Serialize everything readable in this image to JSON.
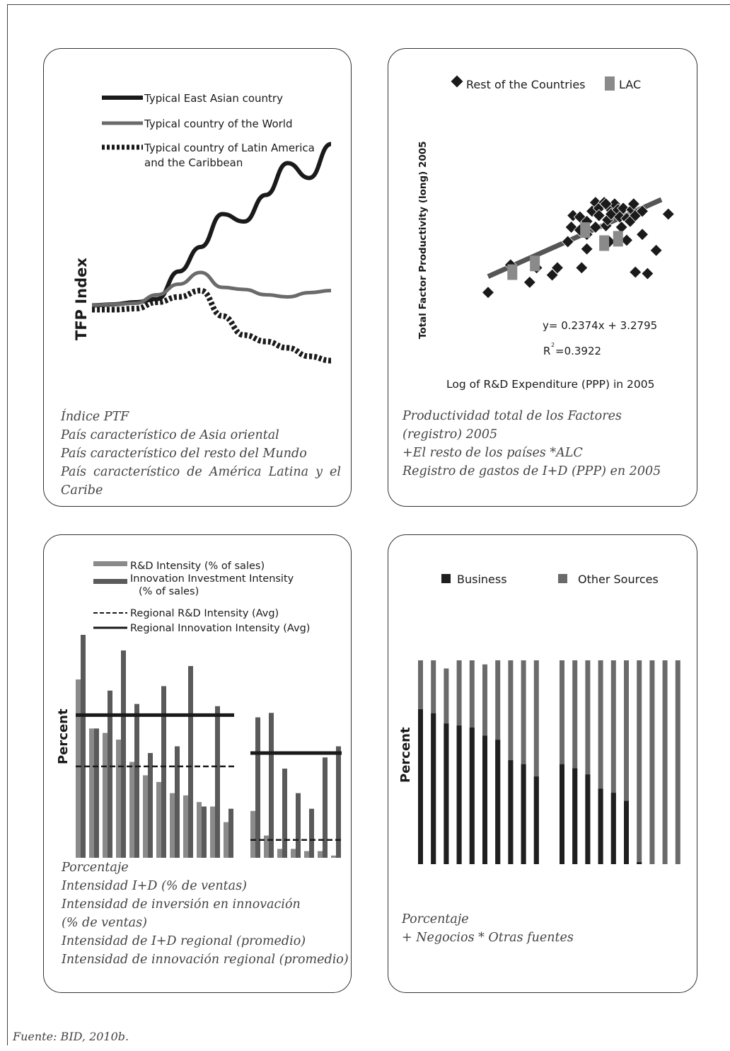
{
  "source": "Fuente: BID, 2010b.",
  "chart_data": [
    {
      "type": "line",
      "ylabel": "TFP Index",
      "legend": [
        {
          "name": "Typical East Asian country",
          "color": "#1a1a1a",
          "style": "solid-thick"
        },
        {
          "name": "Typical country of the World",
          "color": "#6a6a6a",
          "style": "solid"
        },
        {
          "name": "Typical country of Latin America",
          "name2": "and the Caribbean",
          "color": "#1a1a1a",
          "style": "dashed-thick"
        }
      ],
      "series": [
        {
          "name": "Typical East Asian country",
          "values": [
            1.0,
            1.01,
            1.03,
            1.06,
            1.32,
            1.55,
            1.86,
            1.79,
            2.04,
            2.34,
            2.2,
            2.52
          ]
        },
        {
          "name": "Typical country of the World",
          "values": [
            1.0,
            1.01,
            1.02,
            1.1,
            1.2,
            1.31,
            1.17,
            1.15,
            1.1,
            1.08,
            1.12,
            1.14
          ]
        },
        {
          "name": "Typical country of Latin America and the Caribbean",
          "values": [
            0.96,
            0.96,
            0.97,
            1.03,
            1.08,
            1.14,
            0.9,
            0.72,
            0.66,
            0.6,
            0.52,
            0.48
          ]
        }
      ],
      "caption": [
        "Índice PTF",
        "País característico de Asia oriental",
        "País característico del resto del Mundo",
        "País característico de América Latina y el Caribe"
      ]
    },
    {
      "type": "scatter",
      "xlabel": "Log of R&D Expenditure (PPP) in 2005",
      "ylabel": "Total Factor Productivity (long) 2005",
      "legend": [
        {
          "name": "Rest of the Countries",
          "marker": "diamond",
          "color": "#1a1a1a"
        },
        {
          "name": "LAC",
          "marker": "square",
          "color": "#8a8a8a"
        }
      ],
      "equation": "y= 0.2374x + 3.2795",
      "r2": "=0.3922",
      "trend": {
        "x0": 0.0,
        "y0": 0.7,
        "x1": 10.0,
        "y1": 6.0
      },
      "series": [
        {
          "name": "Rest of the Countries",
          "points": [
            [
              0,
              -0.4
            ],
            [
              1.3,
              1.5
            ],
            [
              2.4,
              0.3
            ],
            [
              2.8,
              1.3
            ],
            [
              3.7,
              0.8
            ],
            [
              4.0,
              1.3
            ],
            [
              4.6,
              3.1
            ],
            [
              4.8,
              4.1
            ],
            [
              4.9,
              4.9
            ],
            [
              5.3,
              3.9
            ],
            [
              5.3,
              4.8
            ],
            [
              5.4,
              1.3
            ],
            [
              5.7,
              2.6
            ],
            [
              5.7,
              3.6
            ],
            [
              5.7,
              4.5
            ],
            [
              6.0,
              5.2
            ],
            [
              6.2,
              5.8
            ],
            [
              6.4,
              5.4
            ],
            [
              6.4,
              4.9
            ],
            [
              6.7,
              5.8
            ],
            [
              6.8,
              4.2
            ],
            [
              6.9,
              4.6
            ],
            [
              7.0,
              5.4
            ],
            [
              7.1,
              5.0
            ],
            [
              7.3,
              5.7
            ],
            [
              7.5,
              5.3
            ],
            [
              7.6,
              4.8
            ],
            [
              7.8,
              5.4
            ],
            [
              8.0,
              4.7
            ],
            [
              8.2,
              4.5
            ],
            [
              8.3,
              5.3
            ],
            [
              8.4,
              5.7
            ],
            [
              8.5,
              4.9
            ],
            [
              9.2,
              0.9
            ],
            [
              8.5,
              1.0
            ],
            [
              9.7,
              2.5
            ],
            [
              10.4,
              5.0
            ],
            [
              7.0,
              3.1
            ],
            [
              8.0,
              3.2
            ],
            [
              7.7,
              4.1
            ],
            [
              6.8,
              5.7
            ],
            [
              8.9,
              5.2
            ],
            [
              8.9,
              3.6
            ],
            [
              6.2,
              4.1
            ]
          ]
        },
        {
          "name": "LAC",
          "points": [
            [
              1.4,
              1.0
            ],
            [
              2.7,
              1.6
            ],
            [
              5.6,
              3.9
            ],
            [
              6.7,
              3.0
            ],
            [
              7.5,
              3.3
            ]
          ]
        }
      ],
      "caption": [
        "Productividad total de los Factores",
        "(registro) 2005",
        "+El resto de los países  *ALC",
        "Registro de gastos de I+D (PPP) en 2005"
      ]
    },
    {
      "type": "bar",
      "ylabel": "Percent",
      "legend": [
        {
          "name": "R&D Intensity (% of sales)",
          "color": "#8a8a8a"
        },
        {
          "name": "Innovation Investment Intensity",
          "name2": "(% of sales)",
          "color": "#5a5a5a"
        },
        {
          "name": "Regional R&D Intensity (Avg)",
          "style": "dashed"
        },
        {
          "name": "Regional Innovation Intensity (Avg)",
          "style": "solid"
        }
      ],
      "groups": [
        {
          "rd": [
            8.0,
            5.8,
            5.6,
            5.3,
            4.3,
            3.7,
            3.4,
            2.9,
            2.8,
            2.5,
            2.3,
            1.6
          ],
          "innov": [
            10.0,
            5.8,
            7.5,
            9.3,
            6.9,
            4.7,
            7.7,
            5.0,
            8.6,
            2.3,
            6.8,
            2.2
          ],
          "avg_rd": 4.1,
          "avg_innov": 6.4
        },
        {
          "rd": [
            2.1,
            1.0,
            0.4,
            0.4,
            0.3,
            0.3,
            0.1
          ],
          "innov": [
            6.3,
            6.5,
            4.0,
            2.9,
            2.2,
            4.5,
            5.0
          ],
          "avg_rd": 0.8,
          "avg_innov": 4.7
        }
      ],
      "caption": [
        "Porcentaje",
        "Intensidad I+D (% de ventas)",
        "Intensidad de inversión en innovación",
        "(% de ventas)",
        "Intensidad de I+D regional (promedio)",
        "Intensidad de innovación regional (promedio)"
      ]
    },
    {
      "type": "bar",
      "stacked": true,
      "ylabel": "Percent",
      "legend": [
        {
          "name": "Business",
          "color": "#1f1f1f"
        },
        {
          "name": "Other Sources",
          "color": "#6a6a6a"
        }
      ],
      "groups": [
        {
          "business": [
            76,
            74,
            69,
            68,
            67,
            63,
            61,
            51,
            49,
            43
          ],
          "total": [
            100,
            100,
            96,
            100,
            100,
            98,
            100,
            100,
            100,
            100
          ]
        },
        {
          "business": [
            49,
            47,
            44,
            37,
            35,
            31,
            1,
            0,
            0,
            0
          ],
          "total": [
            100,
            100,
            100,
            100,
            100,
            100,
            100,
            100,
            100,
            100
          ]
        }
      ],
      "caption": [
        "Porcentaje",
        "+ Negocios  * Otras fuentes"
      ]
    }
  ]
}
